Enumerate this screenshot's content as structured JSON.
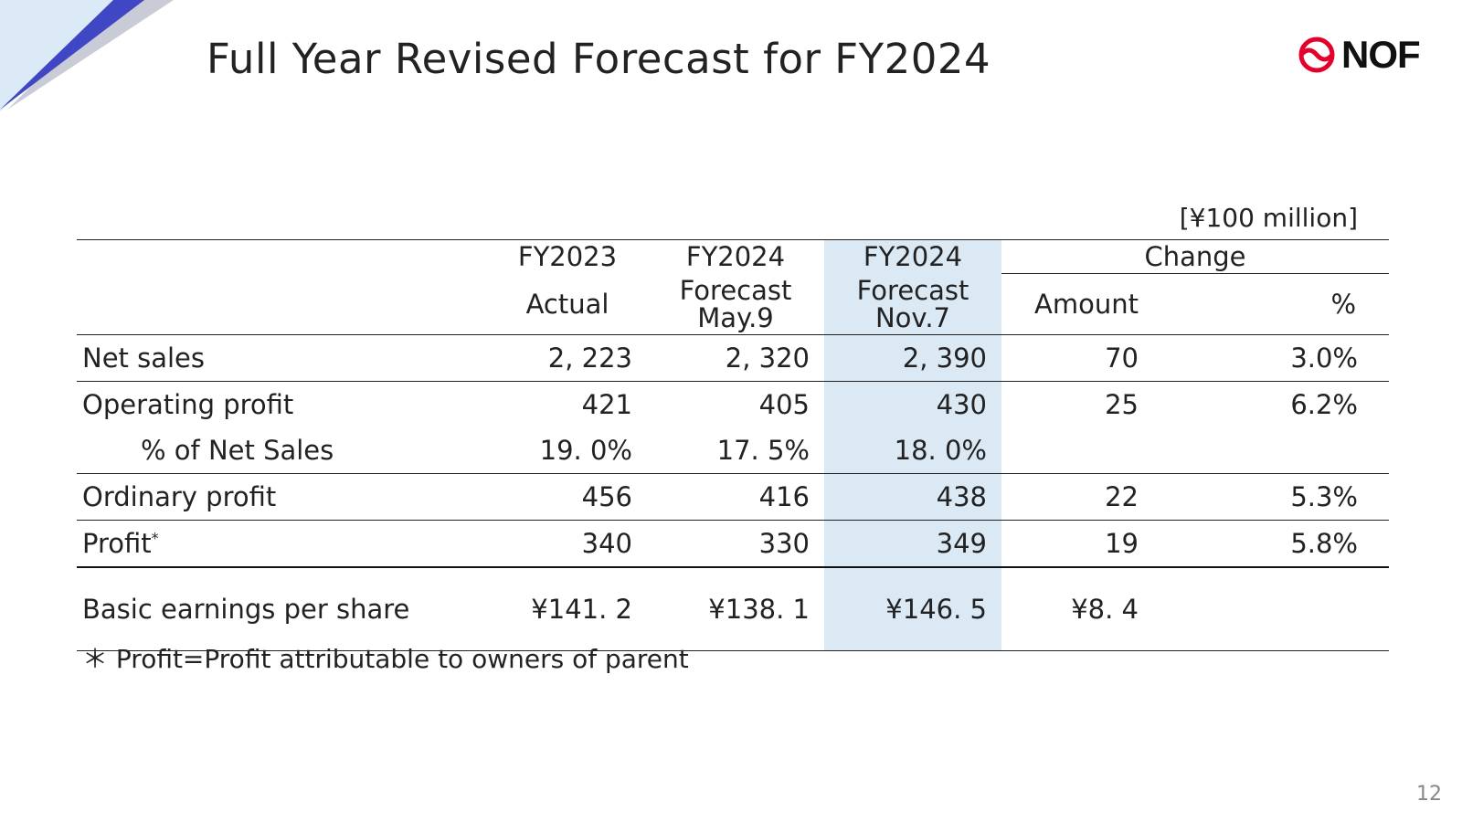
{
  "title": "Full Year Revised Forecast for FY2024",
  "logo": {
    "text": "NOF",
    "color": "#e4002b"
  },
  "unit": "[¥100 million]",
  "columns": {
    "fy2023_line1": "FY2023",
    "fy2023_line2": "Actual",
    "may_line1": "FY2024",
    "may_line2": "Forecast",
    "may_line3": "May.9",
    "nov_line1": "FY2024",
    "nov_line2": "Forecast",
    "nov_line3": "Nov.7",
    "change": "Change",
    "amount": "Amount",
    "percent": "%"
  },
  "rows": [
    {
      "label": "Net sales",
      "fy2023": "2, 223",
      "may": "2, 320",
      "nov": "2, 390",
      "amount": "70",
      "pct": "3.0%"
    },
    {
      "label": "Operating profit",
      "fy2023": "421",
      "may": "405",
      "nov": "430",
      "amount": "25",
      "pct": "6.2%"
    },
    {
      "label": "% of Net Sales",
      "fy2023": "19. 0%",
      "may": "17. 5%",
      "nov": "18. 0%",
      "amount": "",
      "pct": ""
    },
    {
      "label": "Ordinary profit",
      "fy2023": "456",
      "may": "416",
      "nov": "438",
      "amount": "22",
      "pct": "5.3%"
    },
    {
      "label": "Profit",
      "label_sup": "*",
      "fy2023": "340",
      "may": "330",
      "nov": "349",
      "amount": "19",
      "pct": "5.8%"
    },
    {
      "label": "Basic earnings per share",
      "fy2023": "¥141. 2",
      "may": "¥138. 1",
      "nov": "¥146. 5",
      "amount": "¥8. 4",
      "pct": ""
    }
  ],
  "footnote": "＊ Profit=Profit attributable to owners of parent",
  "page_number": "12",
  "colors": {
    "highlight_column": "#dbe9f5",
    "corner_dark": "#3f47c4",
    "corner_light": "#dce9f6"
  }
}
